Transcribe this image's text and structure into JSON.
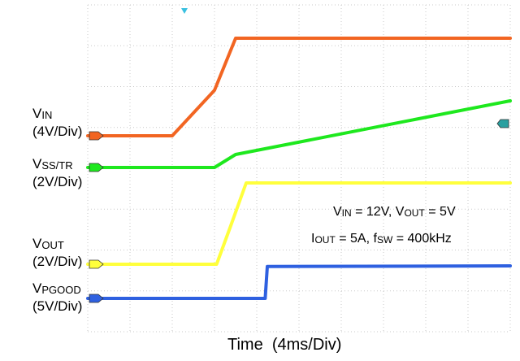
{
  "chart_data": {
    "type": "line",
    "title": "",
    "xlabel": "Time  (4ms/Div)",
    "x_unit": "ms",
    "x_per_div": 4,
    "x_divisions": 10,
    "y_divisions": 8,
    "grid": true,
    "conditions": [
      {
        "parts": [
          [
            "V",
            "IN"
          ],
          [
            " = 12V, V",
            "OUT"
          ],
          [
            " = 5V",
            ""
          ]
        ]
      },
      {
        "parts": [
          [
            "I",
            "OUT"
          ],
          [
            " = 5A, f",
            "SW"
          ],
          [
            " = 400kHz",
            ""
          ]
        ]
      }
    ],
    "series": [
      {
        "name_main": "V",
        "name_sub": "IN",
        "scale": "(4V/Div)",
        "color": "#f26522",
        "points": [
          [
            0,
            0
          ],
          [
            8,
            0
          ],
          [
            12,
            5.6
          ],
          [
            14,
            12
          ],
          [
            40,
            12
          ]
        ]
      },
      {
        "name_main": "V",
        "name_sub": "SS/TR",
        "scale": "(2V/Div)",
        "color": "#1ee81e",
        "points": [
          [
            0,
            0
          ],
          [
            12,
            0
          ],
          [
            14,
            0.8
          ],
          [
            40,
            4.1
          ]
        ]
      },
      {
        "name_main": "V",
        "name_sub": "OUT",
        "scale": "(2V/Div)",
        "color": "#ffff3c",
        "points": [
          [
            0,
            0
          ],
          [
            12.2,
            0
          ],
          [
            13.5,
            2.3
          ],
          [
            15,
            5
          ],
          [
            40,
            5
          ]
        ]
      },
      {
        "name_main": "V",
        "name_sub": "PGOOD",
        "scale": "(5V/Div)",
        "color": "#2e60e0",
        "points": [
          [
            0,
            0
          ],
          [
            16.8,
            0
          ],
          [
            17,
            4.9
          ],
          [
            40,
            5
          ]
        ]
      }
    ]
  }
}
